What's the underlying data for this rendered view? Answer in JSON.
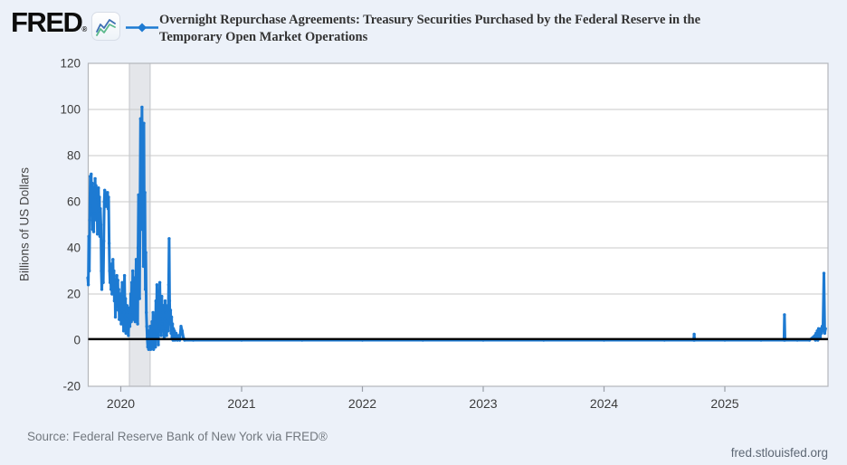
{
  "header": {
    "logo_text": "FRED",
    "registered_mark": "®",
    "title_line1": "Overnight Repurchase Agreements: Treasury Securities Purchased by the Federal Reserve in the",
    "title_line2": "Temporary Open Market Operations"
  },
  "footer": {
    "source_text": "Source: Federal Reserve Bank of New York via FRED®",
    "site_link": "fred.stlouisfed.org"
  },
  "colors": {
    "series_blue": "#1d7ad2",
    "zero_line": "#000000",
    "plot_bg": "#ffffff",
    "page_bg": "#ecf1f9",
    "grid": "#c9c9c9",
    "plot_border": "#b3b6bb",
    "recession_band_fill": "#e4e6ea",
    "recession_band_edge": "#c3c5ca",
    "tick_mark": "#9aa0a8",
    "axis_text": "#3c3c3c",
    "title_text": "#333333",
    "logo_icon_blue": "#3d6fb3",
    "logo_icon_green": "#5cb98c"
  },
  "chart_data": {
    "type": "line",
    "title": "Overnight Repurchase Agreements: Treasury Securities Purchased by the Federal Reserve in the Temporary Open Market Operations",
    "xlabel": "",
    "ylabel": "Billions of US Dollars",
    "ylim": [
      -20,
      120
    ],
    "yticks": [
      120,
      100,
      80,
      60,
      40,
      20,
      0,
      -20
    ],
    "xticks": [
      2020,
      2021,
      2022,
      2023,
      2024,
      2025
    ],
    "x_range_years": [
      2019.727,
      2025.855
    ],
    "grid": "horizontal",
    "zero_line": true,
    "legend_position": "top",
    "recession_band_years": [
      2020.071,
      2020.243
    ],
    "series": [
      {
        "name": "Overnight Repurchase Agreements",
        "color": "#1d7ad2",
        "points": [
          [
            2019.727,
            27
          ],
          [
            2019.731,
            24
          ],
          [
            2019.735,
            45
          ],
          [
            2019.739,
            30
          ],
          [
            2019.743,
            52
          ],
          [
            2019.747,
            71
          ],
          [
            2019.751,
            58
          ],
          [
            2019.755,
            72
          ],
          [
            2019.759,
            55
          ],
          [
            2019.763,
            68
          ],
          [
            2019.767,
            48
          ],
          [
            2019.771,
            66
          ],
          [
            2019.775,
            47
          ],
          [
            2019.779,
            64
          ],
          [
            2019.783,
            55
          ],
          [
            2019.787,
            70
          ],
          [
            2019.791,
            62
          ],
          [
            2019.795,
            67
          ],
          [
            2019.799,
            52
          ],
          [
            2019.803,
            63
          ],
          [
            2019.807,
            46
          ],
          [
            2019.811,
            61
          ],
          [
            2019.815,
            66
          ],
          [
            2019.819,
            56
          ],
          [
            2019.823,
            62
          ],
          [
            2019.827,
            45
          ],
          [
            2019.831,
            57
          ],
          [
            2019.835,
            50
          ],
          [
            2019.839,
            30
          ],
          [
            2019.843,
            22
          ],
          [
            2019.847,
            28
          ],
          [
            2019.851,
            35
          ],
          [
            2019.855,
            25
          ],
          [
            2019.859,
            43
          ],
          [
            2019.863,
            60
          ],
          [
            2019.867,
            65
          ],
          [
            2019.871,
            61
          ],
          [
            2019.875,
            64
          ],
          [
            2019.879,
            58
          ],
          [
            2019.883,
            63
          ],
          [
            2019.887,
            59
          ],
          [
            2019.891,
            64
          ],
          [
            2019.895,
            57
          ],
          [
            2019.899,
            62
          ],
          [
            2019.903,
            42
          ],
          [
            2019.907,
            30
          ],
          [
            2019.911,
            25
          ],
          [
            2019.915,
            32
          ],
          [
            2019.919,
            22
          ],
          [
            2019.923,
            33
          ],
          [
            2019.927,
            20
          ],
          [
            2019.931,
            28
          ],
          [
            2019.935,
            35
          ],
          [
            2019.939,
            23
          ],
          [
            2019.943,
            30
          ],
          [
            2019.947,
            17
          ],
          [
            2019.951,
            26
          ],
          [
            2019.955,
            10
          ],
          [
            2019.959,
            24
          ],
          [
            2019.963,
            15
          ],
          [
            2019.967,
            28
          ],
          [
            2019.971,
            19
          ],
          [
            2019.975,
            26
          ],
          [
            2019.979,
            13
          ],
          [
            2019.983,
            22
          ],
          [
            2019.987,
            9
          ],
          [
            2019.991,
            18
          ],
          [
            2019.995,
            12
          ],
          [
            2019.999,
            20
          ],
          [
            2020.003,
            7
          ],
          [
            2020.007,
            15
          ],
          [
            2020.011,
            25
          ],
          [
            2020.015,
            8
          ],
          [
            2020.019,
            16
          ],
          [
            2020.023,
            4
          ],
          [
            2020.027,
            12
          ],
          [
            2020.031,
            28
          ],
          [
            2020.035,
            10
          ],
          [
            2020.039,
            18
          ],
          [
            2020.043,
            3
          ],
          [
            2020.047,
            9
          ],
          [
            2020.051,
            15
          ],
          [
            2020.055,
            5
          ],
          [
            2020.059,
            12
          ],
          [
            2020.063,
            2
          ],
          [
            2020.067,
            8
          ],
          [
            2020.071,
            14
          ],
          [
            2020.075,
            6
          ],
          [
            2020.079,
            12
          ],
          [
            2020.083,
            20
          ],
          [
            2020.087,
            8
          ],
          [
            2020.091,
            25
          ],
          [
            2020.095,
            11
          ],
          [
            2020.099,
            30
          ],
          [
            2020.103,
            9
          ],
          [
            2020.107,
            22
          ],
          [
            2020.111,
            13
          ],
          [
            2020.115,
            27
          ],
          [
            2020.119,
            8
          ],
          [
            2020.123,
            18
          ],
          [
            2020.127,
            35
          ],
          [
            2020.131,
            10
          ],
          [
            2020.135,
            28
          ],
          [
            2020.139,
            7
          ],
          [
            2020.143,
            40
          ],
          [
            2020.147,
            63
          ],
          [
            2020.151,
            28
          ],
          [
            2020.155,
            18
          ],
          [
            2020.159,
            55
          ],
          [
            2020.163,
            96
          ],
          [
            2020.167,
            48
          ],
          [
            2020.171,
            75
          ],
          [
            2020.175,
            101
          ],
          [
            2020.179,
            58
          ],
          [
            2020.183,
            88
          ],
          [
            2020.187,
            32
          ],
          [
            2020.191,
            94
          ],
          [
            2020.195,
            44
          ],
          [
            2020.199,
            64
          ],
          [
            2020.203,
            22
          ],
          [
            2020.207,
            38
          ],
          [
            2020.211,
            12
          ],
          [
            2020.215,
            6
          ],
          [
            2020.219,
            1
          ],
          [
            2020.223,
            -3
          ],
          [
            2020.227,
            4
          ],
          [
            2020.231,
            -4
          ],
          [
            2020.235,
            2
          ],
          [
            2020.239,
            -2
          ],
          [
            2020.243,
            6
          ],
          [
            2020.247,
            -4
          ],
          [
            2020.251,
            1
          ],
          [
            2020.255,
            -3
          ],
          [
            2020.259,
            8
          ],
          [
            2020.263,
            -2
          ],
          [
            2020.267,
            12
          ],
          [
            2020.271,
            -4
          ],
          [
            2020.275,
            4
          ],
          [
            2020.279,
            -1
          ],
          [
            2020.283,
            9
          ],
          [
            2020.287,
            -3
          ],
          [
            2020.291,
            17
          ],
          [
            2020.295,
            3
          ],
          [
            2020.299,
            24
          ],
          [
            2020.303,
            7
          ],
          [
            2020.307,
            14
          ],
          [
            2020.311,
            -2
          ],
          [
            2020.315,
            21
          ],
          [
            2020.319,
            5
          ],
          [
            2020.323,
            25
          ],
          [
            2020.327,
            9
          ],
          [
            2020.331,
            16
          ],
          [
            2020.335,
            2
          ],
          [
            2020.339,
            19
          ],
          [
            2020.343,
            7
          ],
          [
            2020.347,
            12
          ],
          [
            2020.351,
            4
          ],
          [
            2020.355,
            15
          ],
          [
            2020.359,
            1
          ],
          [
            2020.363,
            9
          ],
          [
            2020.367,
            17
          ],
          [
            2020.371,
            5
          ],
          [
            2020.375,
            12
          ],
          [
            2020.379,
            2
          ],
          [
            2020.383,
            8
          ],
          [
            2020.387,
            15
          ],
          [
            2020.391,
            4
          ],
          [
            2020.396,
            24
          ],
          [
            2020.4,
            44
          ],
          [
            2020.404,
            17
          ],
          [
            2020.408,
            7
          ],
          [
            2020.412,
            13
          ],
          [
            2020.416,
            3
          ],
          [
            2020.42,
            10
          ],
          [
            2020.424,
            1
          ],
          [
            2020.428,
            7
          ],
          [
            2020.432,
            0
          ],
          [
            2020.436,
            5
          ],
          [
            2020.44,
            1
          ],
          [
            2020.444,
            4
          ],
          [
            2020.448,
            0
          ],
          [
            2020.458,
            3
          ],
          [
            2020.468,
            0
          ],
          [
            2020.478,
            2
          ],
          [
            2020.488,
            0
          ],
          [
            2020.498,
            6
          ],
          [
            2020.508,
            4
          ],
          [
            2020.518,
            1
          ],
          [
            2020.528,
            0
          ],
          [
            2020.6,
            0
          ],
          [
            2021.0,
            0
          ],
          [
            2021.5,
            0
          ],
          [
            2022.0,
            0
          ],
          [
            2022.5,
            0
          ],
          [
            2023.0,
            0
          ],
          [
            2023.5,
            0
          ],
          [
            2024.0,
            0
          ],
          [
            2024.5,
            0
          ],
          [
            2024.742,
            0
          ],
          [
            2024.746,
            2.6
          ],
          [
            2024.75,
            0
          ],
          [
            2025.0,
            0
          ],
          [
            2025.3,
            0
          ],
          [
            2025.49,
            0
          ],
          [
            2025.494,
            11
          ],
          [
            2025.498,
            0
          ],
          [
            2025.6,
            0
          ],
          [
            2025.7,
            0
          ],
          [
            2025.745,
            2
          ],
          [
            2025.75,
            0
          ],
          [
            2025.755,
            3
          ],
          [
            2025.76,
            1
          ],
          [
            2025.765,
            4
          ],
          [
            2025.77,
            0
          ],
          [
            2025.775,
            5
          ],
          [
            2025.78,
            2
          ],
          [
            2025.785,
            4
          ],
          [
            2025.79,
            1
          ],
          [
            2025.795,
            5
          ],
          [
            2025.8,
            3
          ],
          [
            2025.806,
            6
          ],
          [
            2025.812,
            4
          ],
          [
            2025.82,
            29
          ],
          [
            2025.827,
            3
          ],
          [
            2025.833,
            5
          ]
        ]
      }
    ]
  }
}
